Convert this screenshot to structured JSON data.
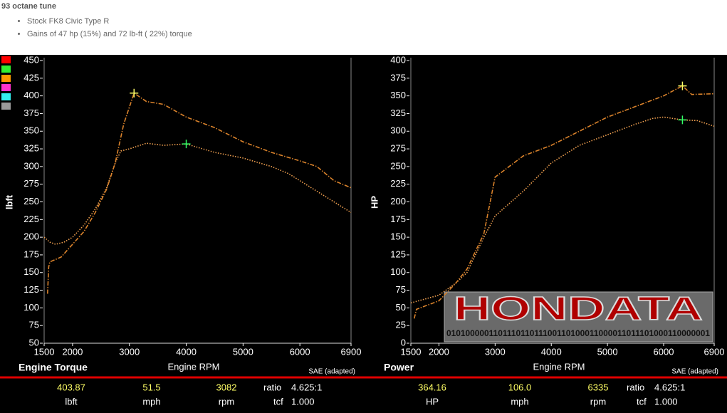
{
  "header": {
    "title": "93 octane tune",
    "bullets": [
      "Stock FK8 Civic Type R",
      "Gains of 47 hp (15%) and 72 lb-ft ( 22%) torque"
    ]
  },
  "logo": {
    "text": "HONDATA",
    "code": "010100000110111011011100110100011000011011101000110000001"
  },
  "chart_data": [
    {
      "type": "line",
      "title": "Engine Torque",
      "x_label": "Engine RPM",
      "y_label": "lbft",
      "note": "SAE (adapted)",
      "xlim": [
        1500,
        6900
      ],
      "xticks": [
        1500,
        2000,
        3000,
        4000,
        5000,
        6000,
        6900
      ],
      "ylim": [
        50,
        450
      ],
      "yticks": [
        50,
        75,
        100,
        125,
        150,
        175,
        200,
        225,
        250,
        275,
        300,
        325,
        350,
        375,
        400,
        425,
        450
      ],
      "series": [
        {
          "color": "#f0a050",
          "style": "dotted",
          "x": [
            1500,
            1600,
            1700,
            1850,
            2000,
            2200,
            2400,
            2600,
            2750,
            2850,
            3000,
            3300,
            3600,
            4000,
            4500,
            5000,
            5500,
            5800,
            6200,
            6600,
            6900
          ],
          "values": [
            200,
            193,
            190,
            193,
            200,
            217,
            240,
            270,
            305,
            322,
            325,
            333,
            330,
            332,
            320,
            312,
            300,
            290,
            270,
            250,
            235
          ]
        },
        {
          "color": "#d9822b",
          "style": "dashdot",
          "x": [
            1560,
            1580,
            1600,
            1800,
            2000,
            2200,
            2400,
            2600,
            2750,
            2900,
            3082,
            3300,
            3600,
            4000,
            4500,
            5000,
            5500,
            6000,
            6300,
            6600,
            6900
          ],
          "values": [
            120,
            158,
            165,
            172,
            190,
            208,
            235,
            268,
            305,
            360,
            403.87,
            392,
            388,
            370,
            355,
            335,
            320,
            308,
            300,
            280,
            270
          ]
        }
      ],
      "markers": [
        {
          "x": 3082,
          "y": 403.87,
          "color": "#ffff66"
        },
        {
          "x": 4000,
          "y": 332,
          "color": "#33ff66"
        }
      ],
      "readout": [
        {
          "top": "403.87",
          "bottom": "lbft"
        },
        {
          "top": "51.5",
          "bottom": "mph"
        },
        {
          "top": "3082",
          "bottom": "rpm"
        },
        {
          "top_label": "ratio",
          "top": "4.625:1",
          "bottom_label": "tcf",
          "bottom": "1.000"
        }
      ]
    },
    {
      "type": "line",
      "title": "Power",
      "x_label": "Engine RPM",
      "y_label": "HP",
      "note": "SAE (adapted)",
      "xlim": [
        1500,
        6900
      ],
      "xticks": [
        1500,
        2000,
        3000,
        4000,
        5000,
        6000,
        6900
      ],
      "ylim": [
        0,
        400
      ],
      "yticks": [
        0,
        25,
        50,
        75,
        100,
        125,
        150,
        175,
        200,
        225,
        250,
        275,
        300,
        325,
        350,
        375,
        400
      ],
      "series": [
        {
          "color": "#f0a050",
          "style": "dotted",
          "x": [
            1500,
            2000,
            2300,
            2500,
            2800,
            3000,
            3500,
            4000,
            4500,
            5000,
            5500,
            5800,
            6000,
            6335,
            6600,
            6900
          ],
          "values": [
            57,
            68,
            85,
            100,
            150,
            180,
            215,
            255,
            280,
            295,
            310,
            318,
            320,
            316,
            315,
            307
          ]
        },
        {
          "color": "#d9822b",
          "style": "dashdot",
          "x": [
            1560,
            1600,
            2000,
            2300,
            2500,
            2800,
            3000,
            3500,
            4000,
            4500,
            5000,
            5500,
            6000,
            6335,
            6500,
            6900
          ],
          "values": [
            35,
            48,
            60,
            85,
            105,
            155,
            235,
            265,
            280,
            300,
            320,
            335,
            350,
            364.16,
            352,
            353
          ]
        }
      ],
      "markers": [
        {
          "x": 6335,
          "y": 364.16,
          "color": "#ffff66"
        },
        {
          "x": 6335,
          "y": 316,
          "color": "#33ff66"
        }
      ],
      "readout": [
        {
          "top": "364.16",
          "bottom": "HP"
        },
        {
          "top": "106.0",
          "bottom": "mph"
        },
        {
          "top": "6335",
          "bottom": "rpm"
        },
        {
          "top_label": "ratio",
          "top": "4.625:1",
          "bottom_label": "tcf",
          "bottom": "1.000"
        }
      ]
    }
  ]
}
